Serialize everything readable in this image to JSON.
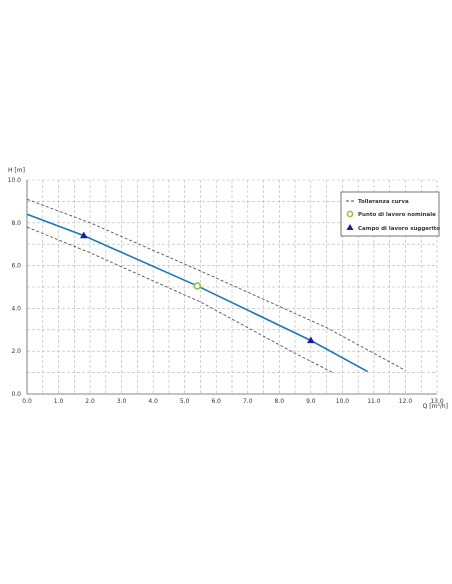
{
  "chart_data": {
    "type": "line",
    "xlabel": "Q [m³/h]",
    "ylabel": "H [m]",
    "xlim": [
      0,
      13
    ],
    "ylim": [
      0,
      10
    ],
    "xticks": [
      "0.0",
      "1.0",
      "2.0",
      "3.0",
      "4.0",
      "5.0",
      "6.0",
      "7.0",
      "8.0",
      "9.0",
      "10.0",
      "11.0",
      "12.0",
      "13.0"
    ],
    "yticks": [
      "0.0",
      "2.0",
      "4.0",
      "6.0",
      "8.0",
      "10.0"
    ],
    "grid": true,
    "legend_position": "top-right",
    "legend": [
      {
        "label": "Tolleranza curva",
        "symbol": "dashed-line"
      },
      {
        "label": "Punto di lavoro nominale",
        "symbol": "open-circle"
      },
      {
        "label": "Campo di lavoro suggerito",
        "symbol": "triangle"
      }
    ],
    "series": [
      {
        "role": "curve",
        "color": "#1f77b4",
        "points": [
          [
            0.0,
            8.4
          ],
          [
            1.8,
            7.4
          ],
          [
            5.4,
            5.05
          ],
          [
            9.0,
            2.5
          ],
          [
            10.8,
            1.05
          ]
        ]
      },
      {
        "role": "tolerance-upper",
        "color": "#555555",
        "points": [
          [
            0.0,
            9.1
          ],
          [
            2.0,
            8.0
          ],
          [
            5.5,
            5.75
          ],
          [
            9.5,
            3.1
          ],
          [
            12.0,
            1.1
          ]
        ]
      },
      {
        "role": "tolerance-lower",
        "color": "#555555",
        "points": [
          [
            0.0,
            7.8
          ],
          [
            2.0,
            6.6
          ],
          [
            5.5,
            4.3
          ],
          [
            8.5,
            1.9
          ],
          [
            9.7,
            1.0
          ]
        ]
      }
    ],
    "operating_point": {
      "x": 5.4,
      "y": 5.05,
      "color": "#8dc63f"
    },
    "recommended_range": [
      {
        "x": 1.8,
        "y": 7.4
      },
      {
        "x": 9.0,
        "y": 2.5
      }
    ],
    "range_color": "#1a1aa6"
  }
}
